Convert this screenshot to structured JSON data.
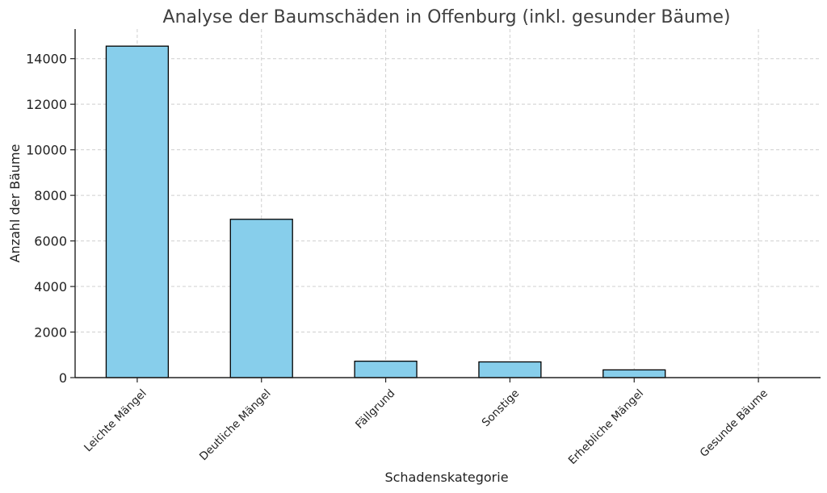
{
  "chart_data": {
    "type": "bar",
    "title": "Analyse der Baumschäden in Offenburg (inkl. gesunder Bäume)",
    "xlabel": "Schadenskategorie",
    "ylabel": "Anzahl der Bäume",
    "categories": [
      "Leichte Mängel",
      "Deutliche Mängel",
      "Fällgrund",
      "Sonstige",
      "Erhebliche Mängel",
      "Gesunde Bäume"
    ],
    "values": [
      14550,
      6950,
      720,
      690,
      340,
      0
    ],
    "ylim": [
      0,
      15300
    ],
    "yticks": [
      0,
      2000,
      4000,
      6000,
      8000,
      10000,
      12000,
      14000
    ],
    "grid": true,
    "bar_color": "#87ceeb",
    "edge_color": "#000000"
  }
}
